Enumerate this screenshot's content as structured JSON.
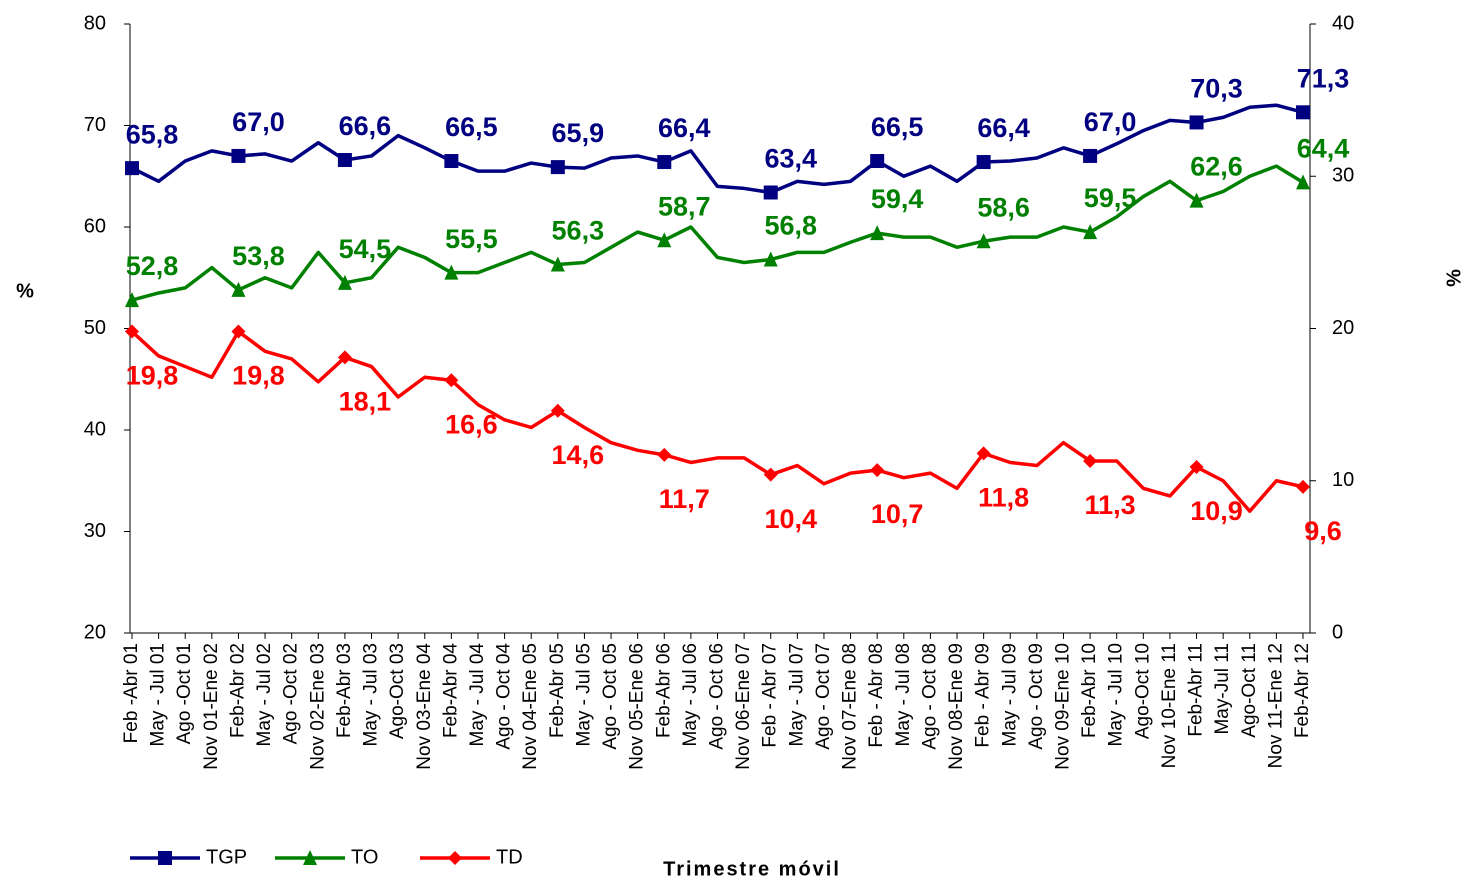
{
  "chart_data": {
    "type": "line",
    "xlabel": "Trimestre móvil",
    "ylabel": "%",
    "y2label": "%",
    "categories": [
      "Feb -Abr 01",
      "May - Jul 01",
      "Ago -Oct 01",
      "Nov 01-Ene 02",
      "Feb-Abr 02",
      "May - Jul 02",
      "Ago -Oct 02",
      "Nov 02-Ene 03",
      "Feb-Abr 03",
      "May - Jul 03",
      "Ago-Oct 03",
      "Nov 03-Ene 04",
      "Feb-Abr 04",
      "May - Jul 04",
      "Ago - Oct 04",
      "Nov 04-Ene 05",
      "Feb-Abr 05",
      "May - Jul 05",
      "Ago - Oct 05",
      "Nov 05-Ene 06",
      "Feb-Abr 06",
      "May - Jul 06",
      "Ago - Oct 06",
      "Nov 06-Ene 07",
      "Feb - Abr 07",
      "May - Jul 07",
      "Ago - Oct 07",
      "Nov 07-Ene 08",
      "Feb - Abr 08",
      "May - Jul 08",
      "Ago - Oct 08",
      "Nov 08-Ene 09",
      "Feb - Abr 09",
      "May - Jul 09",
      "Ago - Oct 09",
      "Nov 09-Ene 10",
      "Feb-Abr 10",
      "May - Jul 10",
      "Ago-Oct 10",
      "Nov 10-Ene 11",
      "Feb-Abr 11",
      "May-Jul 11",
      "Ago-Oct 11",
      "Nov 11-Ene 12",
      "Feb-Abr 12"
    ],
    "ylim": [
      20,
      80
    ],
    "yticks": [
      20,
      30,
      40,
      50,
      60,
      70,
      80
    ],
    "y2lim": [
      0,
      40
    ],
    "y2ticks": [
      0,
      10,
      20,
      30,
      40
    ],
    "legend": "bottom-left",
    "series": [
      {
        "name": "TGP",
        "color": "#000080",
        "marker": "square",
        "values": [
          65.8,
          64.5,
          66.5,
          67.5,
          67.0,
          67.2,
          66.5,
          68.3,
          66.6,
          67.0,
          69.0,
          67.8,
          66.5,
          65.5,
          65.5,
          66.3,
          65.9,
          65.8,
          66.8,
          67.0,
          66.4,
          67.5,
          64.0,
          63.8,
          63.4,
          64.5,
          64.2,
          64.5,
          66.5,
          65.0,
          66.0,
          64.5,
          66.4,
          66.5,
          66.8,
          67.8,
          67.0,
          68.2,
          69.5,
          70.5,
          70.3,
          70.8,
          71.8,
          72.0,
          71.3
        ],
        "value_labels": [
          "65,8",
          null,
          null,
          null,
          "67,0",
          null,
          null,
          null,
          "66,6",
          null,
          null,
          null,
          "66,5",
          null,
          null,
          null,
          "65,9",
          null,
          null,
          null,
          "66,4",
          null,
          null,
          null,
          "63,4",
          null,
          null,
          null,
          "66,5",
          null,
          null,
          null,
          "66,4",
          null,
          null,
          null,
          "67,0",
          null,
          null,
          null,
          "70,3",
          null,
          null,
          null,
          "71,3"
        ]
      },
      {
        "name": "TO",
        "color": "#008000",
        "marker": "triangle",
        "values": [
          52.8,
          53.5,
          54.0,
          56.0,
          53.8,
          55.0,
          54.0,
          57.5,
          54.5,
          55.0,
          58.0,
          57.0,
          55.5,
          55.5,
          56.5,
          57.5,
          56.3,
          56.5,
          58.0,
          59.5,
          58.7,
          60.0,
          57.0,
          56.5,
          56.8,
          57.5,
          57.5,
          58.5,
          59.4,
          59.0,
          59.0,
          58.0,
          58.6,
          59.0,
          59.0,
          60.0,
          59.5,
          61.0,
          63.0,
          64.5,
          62.6,
          63.5,
          65.0,
          66.0,
          64.4
        ],
        "value_labels": [
          "52,8",
          null,
          null,
          null,
          "53,8",
          null,
          null,
          null,
          "54,5",
          null,
          null,
          null,
          "55,5",
          null,
          null,
          null,
          "56,3",
          null,
          null,
          null,
          "58,7",
          null,
          null,
          null,
          "56,8",
          null,
          null,
          null,
          "59,4",
          null,
          null,
          null,
          "58,6",
          null,
          null,
          null,
          "59,5",
          null,
          null,
          null,
          "62,6",
          null,
          null,
          null,
          "64,4"
        ]
      },
      {
        "name": "TD",
        "color": "#ff0000",
        "marker": "diamond",
        "axis": "y2",
        "values": [
          19.8,
          18.2,
          17.5,
          16.8,
          19.8,
          18.5,
          18.0,
          16.5,
          18.1,
          17.5,
          15.5,
          16.8,
          16.6,
          15.0,
          14.0,
          13.5,
          14.6,
          13.5,
          12.5,
          12.0,
          11.7,
          11.2,
          11.5,
          11.5,
          10.4,
          11.0,
          9.8,
          10.5,
          10.7,
          10.2,
          10.5,
          9.5,
          11.8,
          11.2,
          11.0,
          12.5,
          11.3,
          11.3,
          9.5,
          9.0,
          10.9,
          10.0,
          8.0,
          10.0,
          9.6
        ],
        "value_labels": [
          "19,8",
          null,
          null,
          null,
          "19,8",
          null,
          null,
          null,
          "18,1",
          null,
          null,
          null,
          "16,6",
          null,
          null,
          null,
          "14,6",
          null,
          null,
          null,
          "11,7",
          null,
          null,
          null,
          "10,4",
          null,
          null,
          null,
          "10,7",
          null,
          null,
          null,
          "11,8",
          null,
          null,
          null,
          "11,3",
          null,
          null,
          null,
          "10,9",
          null,
          null,
          null,
          "9,6"
        ]
      }
    ]
  }
}
